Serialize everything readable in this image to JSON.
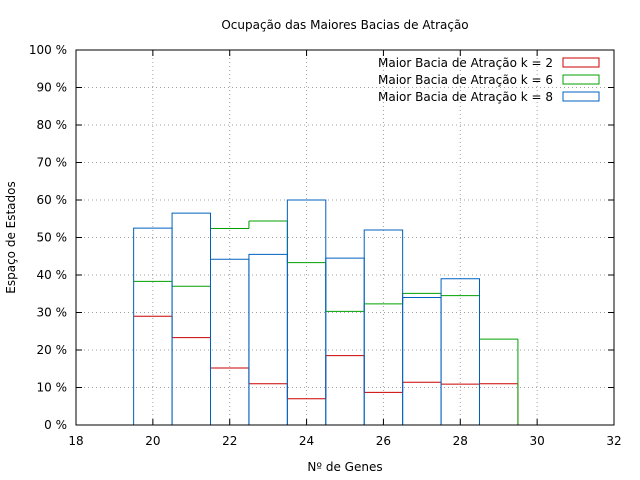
{
  "chart_data": {
    "type": "bar",
    "title": "Ocupação das Maiores Bacias de Atração",
    "xlabel": "Nº de Genes",
    "ylabel": "Espaço de Estados",
    "xlim": [
      18,
      32
    ],
    "ylim": [
      0,
      100
    ],
    "x_ticks": [
      "18",
      "20",
      "22",
      "24",
      "26",
      "28",
      "30",
      "32"
    ],
    "y_ticks": [
      "0 %",
      "10 %",
      "20 %",
      "30 %",
      "40 %",
      "50 %",
      "60 %",
      "70 %",
      "80 %",
      "90 %",
      "100 %"
    ],
    "grid": true,
    "legend_position": "top-right",
    "bar_width": 1,
    "series": [
      {
        "name": "Maior Bacia de Atração k = 2",
        "color": "#cc0000",
        "style": "steps",
        "x": [
          20,
          21,
          22,
          23,
          24,
          25,
          26,
          27,
          28,
          29
        ],
        "values": [
          29,
          23.3,
          15.2,
          11,
          7,
          18.5,
          8.7,
          11.4,
          10.9,
          11
        ]
      },
      {
        "name": "Maior Bacia de Atração k = 6",
        "color": "#00a000",
        "style": "steps",
        "x": [
          20,
          21,
          22,
          23,
          24,
          25,
          26,
          27,
          28,
          29
        ],
        "values": [
          38.3,
          37,
          52.4,
          54.4,
          43.3,
          30.3,
          32.3,
          35.1,
          34.5,
          22.9
        ]
      },
      {
        "name": "Maior Bacia de Atração k = 8",
        "color": "#0060c0",
        "style": "boxes",
        "x": [
          20,
          21,
          22,
          23,
          24,
          25,
          26,
          27,
          28
        ],
        "values": [
          52.5,
          56.5,
          44.2,
          45.5,
          60,
          44.5,
          52,
          34,
          39
        ]
      }
    ]
  }
}
